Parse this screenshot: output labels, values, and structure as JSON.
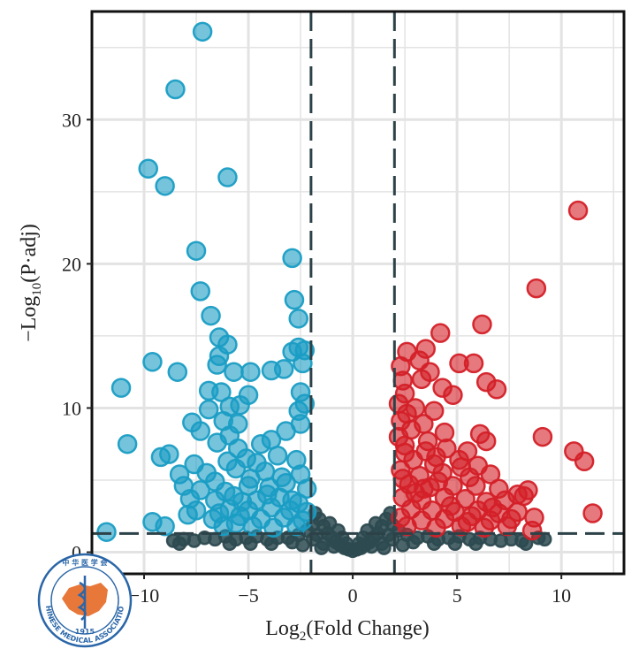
{
  "chart_data": {
    "type": "scatter",
    "title": "",
    "xlabel": "Log2(Fold Change)",
    "xlabel_parts": {
      "pre": "Log",
      "sub": "2",
      "post": "(Fold Change)"
    },
    "ylabel": "-Log10(P·adj)",
    "ylabel_parts": {
      "pre": "−Log",
      "sub": "10",
      "post": "(P·adj)"
    },
    "xlim": [
      -12.5,
      13
    ],
    "ylim": [
      -1.5,
      37.5
    ],
    "x_ticks": [
      -10,
      -5,
      0,
      5,
      10
    ],
    "x_tick_labels": [
      "−10",
      "−5",
      "0",
      "5",
      "10"
    ],
    "y_ticks": [
      0,
      10,
      20,
      30
    ],
    "y_tick_labels": [
      "0",
      "10",
      "20",
      "30"
    ],
    "grid": true,
    "thresholds": {
      "fold_change": [
        -2,
        2
      ],
      "padj_line": 1.3
    },
    "colors": {
      "down": "#1a9dc4",
      "up": "#d42028",
      "not_significant": "#2d4a50",
      "threshold_line": "#2d4248",
      "frame": "#111111",
      "grid": "#e3e3e3"
    },
    "series": [
      {
        "group": "down",
        "points": [
          [
            -7.2,
            36.1
          ],
          [
            -8.5,
            32.1
          ],
          [
            -9.8,
            26.6
          ],
          [
            -9.0,
            25.4
          ],
          [
            -6.0,
            26.0
          ],
          [
            -7.5,
            20.9
          ],
          [
            -2.9,
            20.4
          ],
          [
            -7.3,
            18.1
          ],
          [
            -2.8,
            17.5
          ],
          [
            -6.8,
            16.4
          ],
          [
            -2.6,
            16.2
          ],
          [
            -6.4,
            14.9
          ],
          [
            -6.0,
            14.4
          ],
          [
            -2.6,
            14.2
          ],
          [
            -6.4,
            13.6
          ],
          [
            -2.9,
            13.9
          ],
          [
            -2.3,
            14.0
          ],
          [
            -9.6,
            13.2
          ],
          [
            -6.5,
            13.0
          ],
          [
            -5.7,
            12.5
          ],
          [
            -4.9,
            12.5
          ],
          [
            -3.9,
            12.6
          ],
          [
            -3.3,
            12.7
          ],
          [
            -2.4,
            13.1
          ],
          [
            -8.4,
            12.5
          ],
          [
            -11.1,
            11.4
          ],
          [
            -6.9,
            11.2
          ],
          [
            -6.3,
            11.1
          ],
          [
            -5.0,
            10.9
          ],
          [
            -2.5,
            11.1
          ],
          [
            -5.9,
            10.1
          ],
          [
            -5.4,
            10.2
          ],
          [
            -6.9,
            9.9
          ],
          [
            -2.6,
            9.8
          ],
          [
            -2.3,
            10.3
          ],
          [
            -7.7,
            9.0
          ],
          [
            -6.2,
            9.1
          ],
          [
            -5.5,
            8.9
          ],
          [
            -7.3,
            8.4
          ],
          [
            -5.9,
            8.1
          ],
          [
            -3.2,
            8.4
          ],
          [
            -2.5,
            8.9
          ],
          [
            -10.8,
            7.5
          ],
          [
            -6.5,
            7.6
          ],
          [
            -5.5,
            7.2
          ],
          [
            -4.4,
            7.5
          ],
          [
            -3.9,
            7.8
          ],
          [
            -9.2,
            6.6
          ],
          [
            -8.8,
            6.8
          ],
          [
            -7.6,
            6.1
          ],
          [
            -6.0,
            6.3
          ],
          [
            -5.1,
            6.5
          ],
          [
            -4.6,
            6.2
          ],
          [
            -3.6,
            6.7
          ],
          [
            -2.7,
            6.4
          ],
          [
            -8.3,
            5.4
          ],
          [
            -7.0,
            5.5
          ],
          [
            -5.6,
            5.8
          ],
          [
            -4.2,
            5.6
          ],
          [
            -2.5,
            5.4
          ],
          [
            -8.1,
            4.6
          ],
          [
            -7.3,
            4.3
          ],
          [
            -6.6,
            4.9
          ],
          [
            -5.0,
            4.6
          ],
          [
            -4.0,
            4.5
          ],
          [
            -3.2,
            4.8
          ],
          [
            -2.2,
            4.4
          ],
          [
            -7.8,
            3.7
          ],
          [
            -6.6,
            3.6
          ],
          [
            -5.7,
            3.9
          ],
          [
            -4.6,
            3.6
          ],
          [
            -3.5,
            3.8
          ],
          [
            -2.6,
            3.4
          ],
          [
            -7.5,
            2.9
          ],
          [
            -5.9,
            3.0
          ],
          [
            -5.0,
            2.9
          ],
          [
            -3.9,
            3.1
          ],
          [
            -3.0,
            2.9
          ],
          [
            -2.2,
            2.8
          ],
          [
            -7.9,
            2.6
          ],
          [
            -6.7,
            2.3
          ],
          [
            -5.4,
            2.5
          ],
          [
            -4.4,
            2.3
          ],
          [
            -3.3,
            2.4
          ],
          [
            -2.4,
            2.2
          ],
          [
            -9.6,
            2.1
          ],
          [
            -9.0,
            1.8
          ],
          [
            -11.8,
            1.4
          ],
          [
            -6.2,
            1.8
          ],
          [
            -4.8,
            1.8
          ],
          [
            -3.8,
            1.7
          ],
          [
            -2.7,
            1.8
          ],
          [
            -5.3,
            3.5
          ],
          [
            -4.1,
            4.0
          ],
          [
            -6.1,
            4.2
          ],
          [
            -3.4,
            5.2
          ],
          [
            -4.9,
            5.1
          ],
          [
            -2.9,
            3.6
          ],
          [
            -6.4,
            2.7
          ],
          [
            -5.6,
            2.0
          ]
        ]
      },
      {
        "group": "up",
        "points": [
          [
            10.8,
            23.7
          ],
          [
            8.8,
            18.3
          ],
          [
            6.2,
            15.8
          ],
          [
            4.2,
            15.2
          ],
          [
            3.5,
            14.1
          ],
          [
            2.6,
            13.9
          ],
          [
            3.2,
            13.3
          ],
          [
            2.3,
            12.9
          ],
          [
            3.7,
            12.5
          ],
          [
            5.1,
            13.1
          ],
          [
            5.8,
            13.1
          ],
          [
            3.3,
            12.0
          ],
          [
            2.4,
            11.9
          ],
          [
            4.3,
            11.4
          ],
          [
            6.4,
            11.8
          ],
          [
            6.9,
            11.3
          ],
          [
            2.5,
            11.0
          ],
          [
            4.8,
            10.9
          ],
          [
            2.2,
            10.3
          ],
          [
            3.0,
            10.0
          ],
          [
            2.6,
            9.6
          ],
          [
            3.9,
            9.8
          ],
          [
            2.3,
            9.1
          ],
          [
            3.4,
            8.9
          ],
          [
            2.8,
            8.5
          ],
          [
            4.4,
            8.3
          ],
          [
            6.1,
            8.2
          ],
          [
            6.4,
            7.7
          ],
          [
            9.1,
            8.0
          ],
          [
            10.6,
            7.0
          ],
          [
            11.1,
            6.3
          ],
          [
            2.5,
            7.4
          ],
          [
            3.5,
            7.0
          ],
          [
            4.5,
            7.2
          ],
          [
            5.5,
            7.0
          ],
          [
            2.9,
            6.4
          ],
          [
            3.9,
            6.1
          ],
          [
            5.1,
            6.4
          ],
          [
            6.0,
            6.0
          ],
          [
            2.3,
            5.7
          ],
          [
            3.2,
            5.3
          ],
          [
            4.3,
            5.5
          ],
          [
            5.6,
            5.2
          ],
          [
            6.6,
            5.4
          ],
          [
            2.7,
            4.7
          ],
          [
            3.7,
            4.5
          ],
          [
            4.8,
            4.6
          ],
          [
            5.9,
            4.6
          ],
          [
            7.0,
            4.4
          ],
          [
            8.4,
            4.3
          ],
          [
            8.2,
            3.9
          ],
          [
            2.4,
            3.8
          ],
          [
            3.3,
            3.6
          ],
          [
            4.4,
            3.8
          ],
          [
            5.4,
            3.7
          ],
          [
            6.4,
            3.5
          ],
          [
            7.3,
            3.6
          ],
          [
            2.8,
            3.0
          ],
          [
            3.8,
            2.9
          ],
          [
            4.9,
            2.8
          ],
          [
            6.0,
            2.9
          ],
          [
            7.0,
            2.7
          ],
          [
            7.9,
            2.8
          ],
          [
            2.3,
            2.4
          ],
          [
            3.3,
            2.2
          ],
          [
            4.4,
            2.3
          ],
          [
            5.5,
            2.1
          ],
          [
            6.6,
            2.2
          ],
          [
            7.6,
            2.3
          ],
          [
            8.7,
            2.4
          ],
          [
            11.5,
            2.7
          ],
          [
            2.6,
            1.8
          ],
          [
            4.0,
            1.7
          ],
          [
            5.2,
            1.8
          ],
          [
            6.3,
            1.7
          ],
          [
            7.4,
            1.8
          ],
          [
            8.6,
            1.5
          ],
          [
            3.0,
            4.1
          ],
          [
            4.1,
            4.9
          ],
          [
            5.2,
            5.9
          ],
          [
            2.5,
            6.9
          ],
          [
            3.6,
            7.7
          ],
          [
            4.7,
            3.2
          ],
          [
            6.7,
            3.1
          ],
          [
            3.4,
            4.4
          ],
          [
            2.4,
            5.1
          ],
          [
            5.7,
            2.5
          ],
          [
            7.9,
            4.0
          ],
          [
            2.2,
            8.0
          ],
          [
            4.0,
            6.6
          ]
        ]
      },
      {
        "group": "not_significant",
        "points": [
          [
            -8.6,
            0.8
          ],
          [
            -8.1,
            0.9
          ],
          [
            -7.6,
            0.8
          ],
          [
            -7.1,
            1.0
          ],
          [
            -6.6,
            0.9
          ],
          [
            -6.1,
            1.1
          ],
          [
            -5.6,
            0.9
          ],
          [
            -5.1,
            1.0
          ],
          [
            -4.6,
            1.1
          ],
          [
            -4.1,
            0.9
          ],
          [
            -3.6,
            1.0
          ],
          [
            -3.1,
            1.0
          ],
          [
            -2.6,
            1.2
          ],
          [
            -2.2,
            1.5
          ],
          [
            -1.9,
            1.9
          ],
          [
            -1.8,
            2.7
          ],
          [
            -1.6,
            2.3
          ],
          [
            -1.4,
            1.8
          ],
          [
            -1.2,
            1.3
          ],
          [
            -1.0,
            1.0
          ],
          [
            -0.8,
            0.7
          ],
          [
            -0.6,
            0.5
          ],
          [
            -0.4,
            0.3
          ],
          [
            -0.2,
            0.2
          ],
          [
            0.0,
            0.1
          ],
          [
            0.2,
            0.2
          ],
          [
            0.4,
            0.3
          ],
          [
            0.6,
            0.5
          ],
          [
            0.8,
            0.7
          ],
          [
            1.0,
            1.0
          ],
          [
            1.2,
            1.3
          ],
          [
            1.4,
            1.8
          ],
          [
            1.6,
            2.3
          ],
          [
            1.8,
            2.7
          ],
          [
            1.9,
            1.9
          ],
          [
            2.2,
            1.5
          ],
          [
            2.6,
            1.2
          ],
          [
            3.1,
            1.0
          ],
          [
            3.6,
            1.1
          ],
          [
            4.1,
            0.9
          ],
          [
            4.6,
            1.0
          ],
          [
            5.1,
            1.1
          ],
          [
            5.6,
            0.9
          ],
          [
            6.1,
            1.0
          ],
          [
            6.6,
            0.9
          ],
          [
            7.1,
            0.8
          ],
          [
            7.6,
            0.9
          ],
          [
            8.1,
            0.8
          ],
          [
            8.9,
            1.0
          ],
          [
            9.2,
            0.9
          ],
          [
            -5.9,
            0.6
          ],
          [
            -4.9,
            0.6
          ],
          [
            -3.9,
            0.6
          ],
          [
            -2.9,
            0.7
          ],
          [
            -1.4,
            0.6
          ],
          [
            -0.9,
            0.4
          ],
          [
            0.9,
            0.4
          ],
          [
            1.4,
            0.6
          ],
          [
            2.9,
            0.7
          ],
          [
            3.9,
            0.6
          ],
          [
            4.9,
            0.6
          ],
          [
            5.9,
            0.6
          ],
          [
            -1.7,
            1.2
          ],
          [
            1.7,
            1.2
          ],
          [
            -1.1,
            2.0
          ],
          [
            1.1,
            2.0
          ],
          [
            -0.5,
            1.0
          ],
          [
            0.5,
            1.0
          ],
          [
            -1.5,
            0.3
          ],
          [
            1.5,
            0.3
          ],
          [
            -0.3,
            0.6
          ],
          [
            0.3,
            0.6
          ],
          [
            -2.4,
            0.5
          ],
          [
            2.4,
            0.5
          ],
          [
            -8.3,
            0.6
          ],
          [
            8.3,
            0.6
          ],
          [
            -1.9,
            0.9
          ],
          [
            1.9,
            0.9
          ],
          [
            -0.7,
            1.5
          ],
          [
            0.7,
            1.5
          ]
        ]
      }
    ]
  },
  "watermark": {
    "top_text": "中 华 医 学 会",
    "ring_text": "CHINESE MEDICAL ASSOCIATION",
    "year": "1915"
  }
}
